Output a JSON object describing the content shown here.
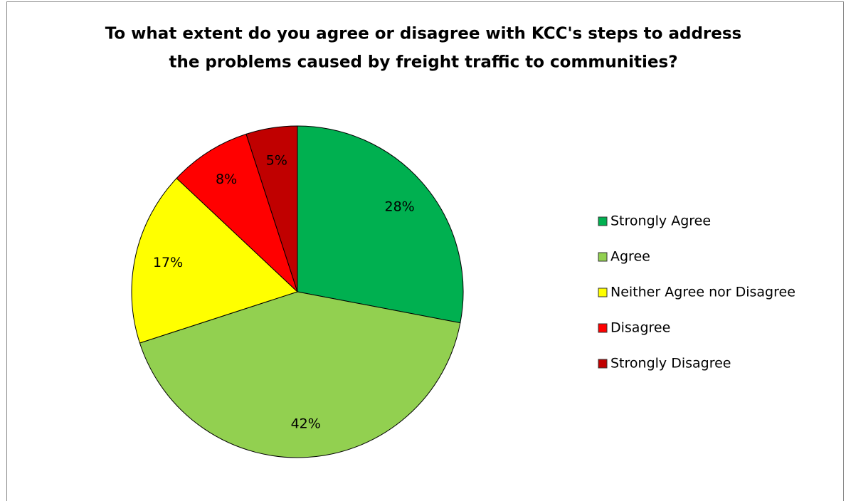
{
  "chart_data": {
    "type": "pie",
    "title": [
      "To what extent do you agree or disagree with KCC's steps to address",
      "the problems caused by freight traffic to communities?"
    ],
    "categories": [
      "Strongly Agree",
      "Agree",
      "Neither Agree nor Disagree",
      "Disagree",
      "Strongly Disagree"
    ],
    "values": [
      28,
      42,
      17,
      8,
      5
    ],
    "value_labels": [
      "28%",
      "42%",
      "17%",
      "8%",
      "5%"
    ],
    "colors": [
      "#00b050",
      "#92d050",
      "#ffff00",
      "#ff0000",
      "#c00000"
    ],
    "legend": "right"
  }
}
